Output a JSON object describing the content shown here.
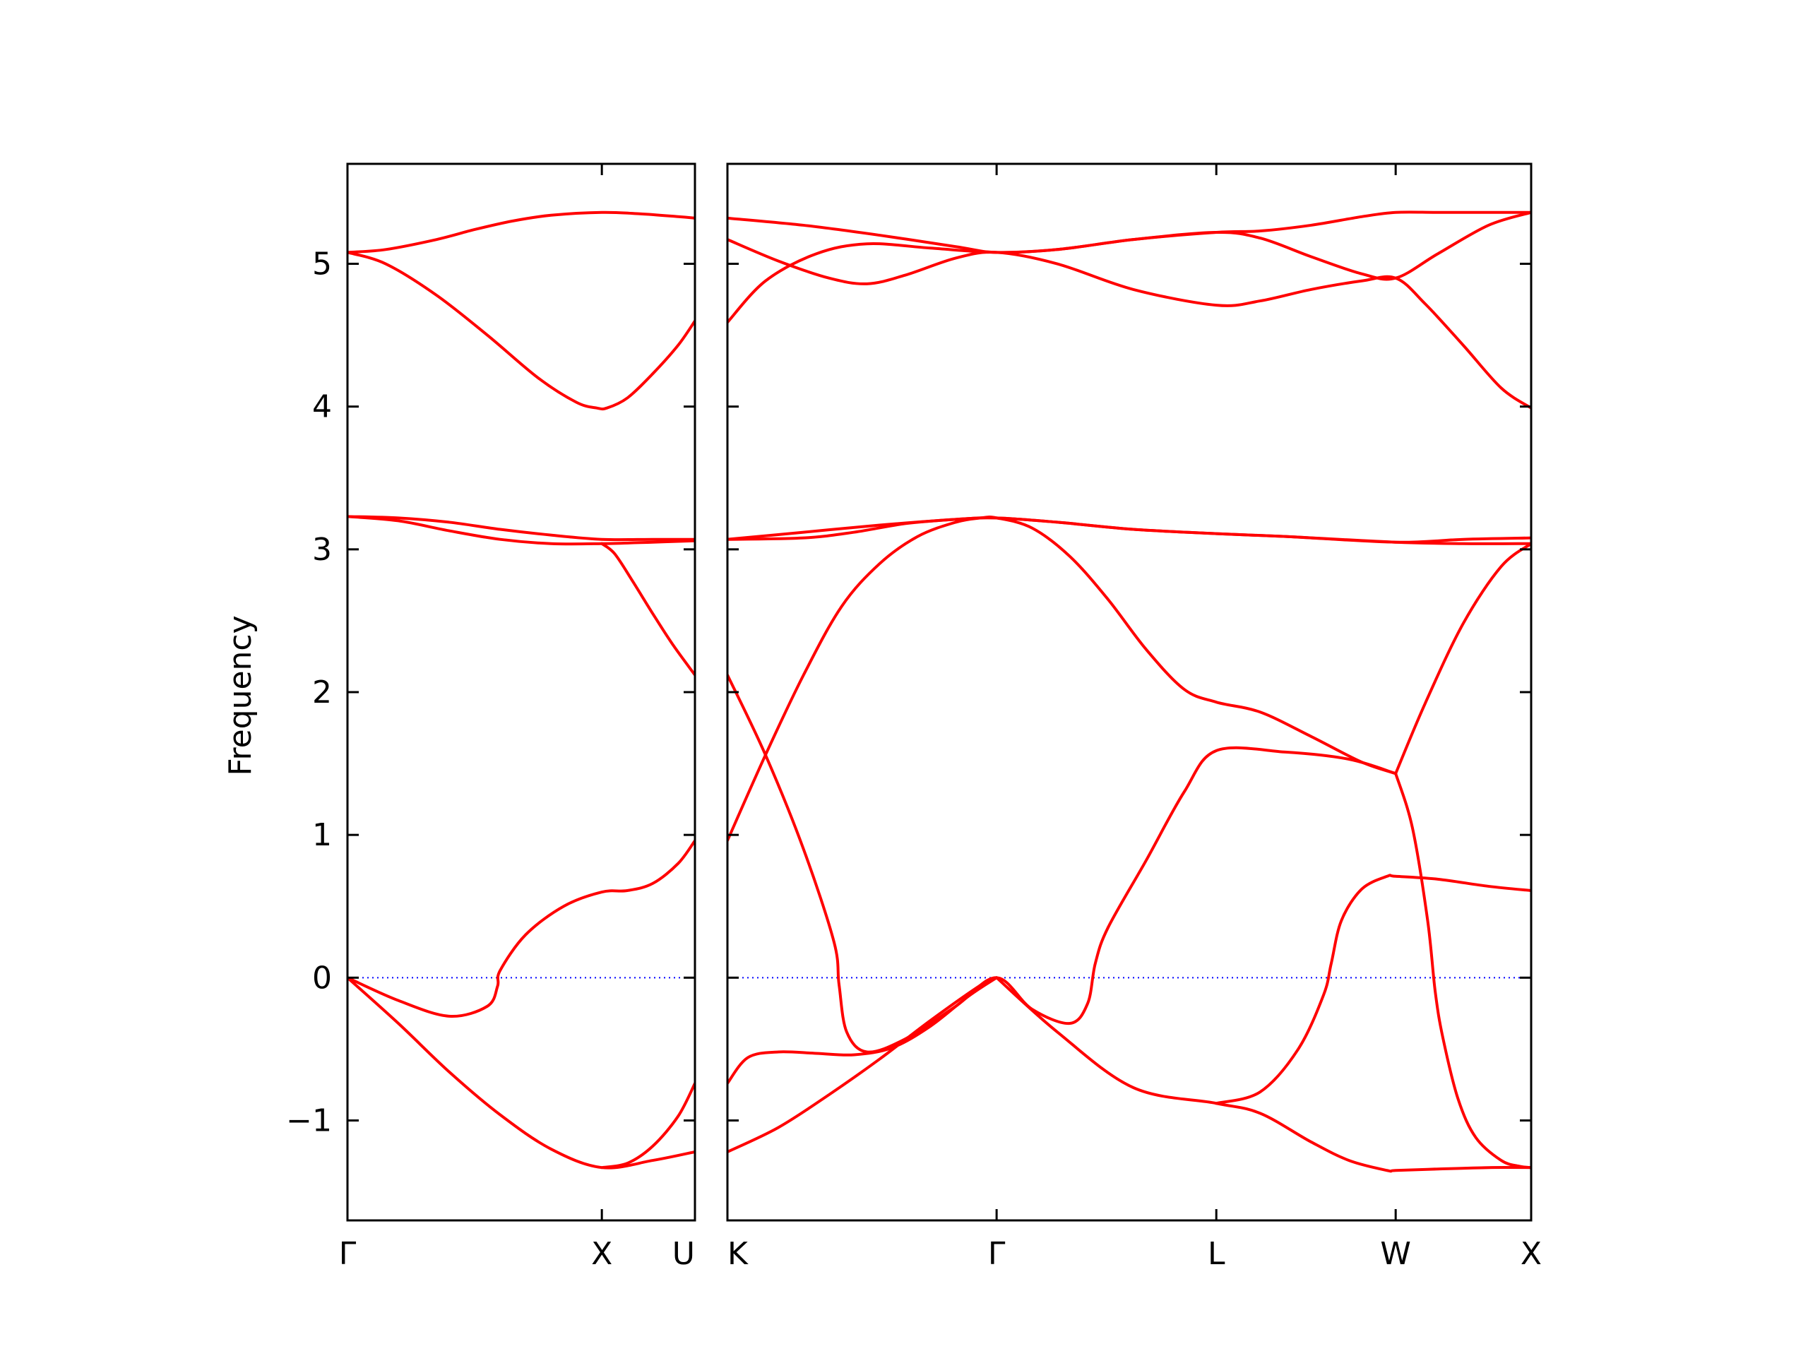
{
  "chart_data": {
    "type": "line",
    "title": "",
    "ylabel": "Frequency",
    "xlabel": "",
    "ylim": [
      -1.7,
      5.7
    ],
    "yticks": [
      -1,
      0,
      1,
      2,
      3,
      4,
      5
    ],
    "ytick_labels": [
      "−1",
      "0",
      "1",
      "2",
      "3",
      "4",
      "5"
    ],
    "grid": false,
    "colors": {
      "bands": "#ff0000",
      "zero_line": "#0000ff",
      "axes": "#000000"
    },
    "panels": [
      {
        "name": "segment-1",
        "xlim": [
          0,
          1.366
        ],
        "xticks": [
          0,
          1.0,
          1.366
        ],
        "xtick_labels": [
          "Γ",
          "X",
          "U"
        ],
        "bands": [
          {
            "x": [
              0,
              0.15,
              0.35,
              0.5,
              0.65,
              0.8,
              1.0,
              1.15,
              1.3,
              1.366
            ],
            "y": [
              5.08,
              5.1,
              5.17,
              5.24,
              5.3,
              5.34,
              5.36,
              5.35,
              5.33,
              5.32
            ]
          },
          {
            "x": [
              0,
              0.15,
              0.35,
              0.55,
              0.75,
              0.9,
              0.98,
              1.02,
              1.1,
              1.2,
              1.3,
              1.366
            ],
            "y": [
              5.08,
              5.0,
              4.78,
              4.5,
              4.2,
              4.03,
              3.99,
              3.99,
              4.06,
              4.23,
              4.43,
              4.6
            ]
          },
          {
            "x": [
              0,
              0.2,
              0.4,
              0.6,
              0.8,
              1.0,
              1.2,
              1.366
            ],
            "y": [
              3.23,
              3.22,
              3.19,
              3.14,
              3.1,
              3.07,
              3.07,
              3.07
            ]
          },
          {
            "x": [
              0,
              0.2,
              0.4,
              0.6,
              0.8,
              1.0,
              1.2,
              1.366
            ],
            "y": [
              3.23,
              3.2,
              3.13,
              3.07,
              3.04,
              3.04,
              3.05,
              3.06
            ]
          },
          {
            "x": [
              0,
              0.2,
              0.4,
              0.55,
              0.59,
              0.6,
              0.7,
              0.85,
              1.0,
              1.1,
              1.2,
              1.3,
              1.366
            ],
            "y": [
              0,
              -0.16,
              -0.27,
              -0.2,
              -0.06,
              0.05,
              0.3,
              0.5,
              0.6,
              0.61,
              0.66,
              0.8,
              0.96
            ]
          },
          {
            "x": [
              0,
              0.2,
              0.4,
              0.6,
              0.8,
              1.0,
              1.2,
              1.366
            ],
            "y": [
              0,
              -0.32,
              -0.66,
              -0.96,
              -1.2,
              -1.33,
              -1.28,
              -1.22
            ]
          },
          {
            "x": [
              1.0,
              1.1,
              1.2,
              1.3,
              1.366
            ],
            "y": [
              -1.33,
              -1.3,
              -1.18,
              -0.97,
              -0.74
            ]
          },
          {
            "x": [
              1.0,
              1.05,
              1.12,
              1.2,
              1.28,
              1.366
            ],
            "y": [
              3.04,
              2.97,
              2.78,
              2.55,
              2.33,
              2.12
            ]
          }
        ]
      },
      {
        "name": "segment-2",
        "xlim": [
          0,
          3.168
        ],
        "xticks": [
          0,
          1.061,
          1.927,
          2.634,
          3.168
        ],
        "xtick_labels": [
          "K",
          "Γ",
          "L",
          "W",
          "X"
        ],
        "bands": [
          {
            "x": [
              0,
              0.3,
              0.6,
              0.9,
              1.061,
              1.3,
              1.6,
              1.927,
              2.1,
              2.3,
              2.5,
              2.634,
              2.8,
              3.0,
              3.168
            ],
            "y": [
              5.32,
              5.27,
              5.2,
              5.12,
              5.08,
              5.1,
              5.17,
              5.22,
              5.23,
              5.27,
              5.33,
              5.36,
              5.36,
              5.36,
              5.36
            ]
          },
          {
            "x": [
              0,
              0.2,
              0.4,
              0.55,
              0.7,
              0.9,
              1.061,
              1.3,
              1.6,
              1.927,
              2.1,
              2.3,
              2.5,
              2.634,
              2.75,
              2.9,
              3.05,
              3.168
            ],
            "y": [
              5.17,
              5.02,
              4.9,
              4.86,
              4.92,
              5.04,
              5.08,
              5.0,
              4.82,
              4.71,
              4.74,
              4.82,
              4.88,
              4.9,
              4.72,
              4.43,
              4.13,
              3.99
            ]
          },
          {
            "x": [
              0,
              0.15,
              0.35,
              0.55,
              0.8,
              1.061,
              1.3,
              1.6,
              1.927,
              2.1,
              2.3,
              2.5,
              2.634,
              2.8,
              3.0,
              3.168
            ],
            "y": [
              4.59,
              4.88,
              5.07,
              5.14,
              5.11,
              5.08,
              5.1,
              5.17,
              5.22,
              5.18,
              5.05,
              4.93,
              4.9,
              5.07,
              5.27,
              5.36
            ]
          },
          {
            "x": [
              0,
              0.3,
              0.6,
              0.9,
              1.061,
              1.3,
              1.6,
              1.927,
              2.2,
              2.634,
              2.9,
              3.168
            ],
            "y": [
              3.07,
              3.12,
              3.17,
              3.21,
              3.22,
              3.19,
              3.14,
              3.11,
              3.09,
              3.05,
              3.07,
              3.08
            ]
          },
          {
            "x": [
              0,
              0.3,
              0.5,
              0.7,
              0.9,
              1.061,
              1.3,
              1.6,
              1.927,
              2.2,
              2.634,
              2.9,
              3.168
            ],
            "y": [
              3.07,
              3.08,
              3.12,
              3.18,
              3.21,
              3.22,
              3.19,
              3.14,
              3.11,
              3.09,
              3.05,
              3.04,
              3.04
            ]
          },
          {
            "x": [
              0,
              0.15,
              0.3,
              0.45,
              0.6,
              0.75,
              0.9,
              1.0,
              1.061,
              1.2,
              1.35,
              1.5,
              1.65,
              1.8,
              1.927,
              2.1,
              2.3,
              2.5,
              2.634
            ],
            "y": [
              0.96,
              1.56,
              2.12,
              2.6,
              2.9,
              3.09,
              3.19,
              3.22,
              3.22,
              3.15,
              2.95,
              2.65,
              2.3,
              2.02,
              1.93,
              1.86,
              1.69,
              1.51,
              1.43
            ]
          },
          {
            "x": [
              0,
              0.15,
              0.3,
              0.42,
              0.44,
              0.47,
              0.55,
              0.7,
              0.9,
              1.061,
              1.2,
              1.35,
              1.42,
              1.45,
              1.5,
              1.65,
              1.8,
              1.927,
              2.2,
              2.45,
              2.634
            ],
            "y": [
              2.12,
              1.56,
              0.9,
              0.25,
              -0.05,
              -0.38,
              -0.52,
              -0.43,
              -0.2,
              0,
              -0.22,
              -0.32,
              -0.18,
              0.1,
              0.35,
              0.82,
              1.3,
              1.59,
              1.58,
              1.53,
              1.43
            ]
          },
          {
            "x": [
              0,
              0.08,
              0.2,
              0.35,
              0.5,
              0.65,
              0.8,
              0.95,
              1.061
            ],
            "y": [
              -0.74,
              -0.56,
              -0.52,
              -0.53,
              -0.54,
              -0.49,
              -0.34,
              -0.13,
              0
            ]
          },
          {
            "x": [
              0,
              0.2,
              0.4,
              0.6,
              0.8,
              1.0,
              1.061
            ],
            "y": [
              -1.22,
              -1.05,
              -0.82,
              -0.57,
              -0.3,
              -0.05,
              0
            ]
          },
          {
            "x": [
              1.061,
              1.3,
              1.6,
              1.927,
              2.1,
              2.3,
              2.45,
              2.6,
              2.634,
              2.8,
              3.0,
              3.168
            ],
            "y": [
              0,
              -0.38,
              -0.77,
              -0.88,
              -0.95,
              -1.15,
              -1.28,
              -1.35,
              -1.35,
              -1.34,
              -1.33,
              -1.33
            ]
          },
          {
            "x": [
              1.927,
              2.1,
              2.25,
              2.35,
              2.38,
              2.42,
              2.5,
              2.6,
              2.634,
              2.8,
              3.0,
              3.168
            ],
            "y": [
              -0.88,
              -0.8,
              -0.5,
              -0.12,
              0.1,
              0.4,
              0.62,
              0.71,
              0.71,
              0.69,
              0.64,
              0.61
            ]
          },
          {
            "x": [
              2.634,
              2.7,
              2.76,
              2.79,
              2.82,
              2.88,
              2.95,
              3.05,
              3.12,
              3.168
            ],
            "y": [
              1.43,
              1.05,
              0.4,
              -0.1,
              -0.42,
              -0.85,
              -1.12,
              -1.28,
              -1.32,
              -1.33
            ]
          },
          {
            "x": [
              2.634,
              2.75,
              2.9,
              3.05,
              3.168
            ],
            "y": [
              1.43,
              1.92,
              2.48,
              2.88,
              3.04
            ]
          }
        ]
      }
    ]
  }
}
